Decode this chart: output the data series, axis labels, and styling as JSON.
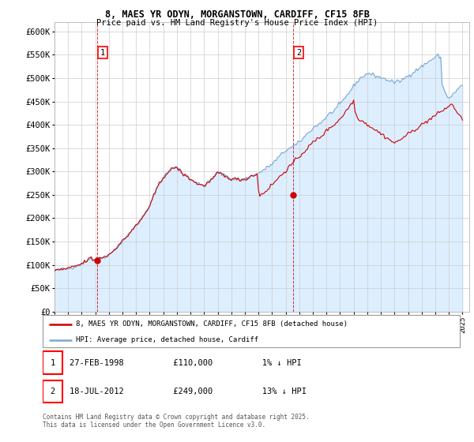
{
  "title_line1": "8, MAES YR ODYN, MORGANSTOWN, CARDIFF, CF15 8FB",
  "title_line2": "Price paid vs. HM Land Registry's House Price Index (HPI)",
  "xlim_start": 1995.0,
  "xlim_end": 2025.5,
  "ylim_min": 0,
  "ylim_max": 620000,
  "yticks": [
    0,
    50000,
    100000,
    150000,
    200000,
    250000,
    300000,
    350000,
    400000,
    450000,
    500000,
    550000,
    600000
  ],
  "ytick_labels": [
    "£0",
    "£50K",
    "£100K",
    "£150K",
    "£200K",
    "£250K",
    "£300K",
    "£350K",
    "£400K",
    "£450K",
    "£500K",
    "£550K",
    "£600K"
  ],
  "xticks": [
    1995,
    1996,
    1997,
    1998,
    1999,
    2000,
    2001,
    2002,
    2003,
    2004,
    2005,
    2006,
    2007,
    2008,
    2009,
    2010,
    2011,
    2012,
    2013,
    2014,
    2015,
    2016,
    2017,
    2018,
    2019,
    2020,
    2021,
    2022,
    2023,
    2024,
    2025
  ],
  "sale1_x": 1998.15,
  "sale1_y": 110000,
  "sale1_label": "1",
  "sale2_x": 2012.55,
  "sale2_y": 249000,
  "sale2_label": "2",
  "red_line_color": "#cc0000",
  "blue_line_color": "#7aa8d2",
  "fill_color": "#ddeeff",
  "background_color": "#ffffff",
  "grid_color": "#cccccc",
  "legend_label_red": "8, MAES YR ODYN, MORGANSTOWN, CARDIFF, CF15 8FB (detached house)",
  "legend_label_blue": "HPI: Average price, detached house, Cardiff",
  "copyright_text": "Contains HM Land Registry data © Crown copyright and database right 2025.\nThis data is licensed under the Open Government Licence v3.0.",
  "hpi_base_values": [
    88000,
    88500,
    89000,
    89200,
    89500,
    90000,
    90500,
    91000,
    91500,
    92000,
    92500,
    93000,
    94000,
    95000,
    96000,
    97000,
    98000,
    99000,
    100000,
    101000,
    102000,
    104000,
    106000,
    108000,
    110000,
    112000,
    114000,
    116000,
    109000,
    111000,
    112000,
    112500,
    113000,
    114000,
    115000,
    116000,
    117000,
    118000,
    119000,
    120000,
    122000,
    124000,
    127000,
    130000,
    133000,
    136000,
    139000,
    142000,
    145000,
    148000,
    151000,
    154000,
    157000,
    160000,
    163000,
    167000,
    171000,
    175000,
    178000,
    181000,
    184000,
    187000,
    191000,
    195000,
    199000,
    203000,
    207000,
    212000,
    217000,
    221000,
    225000,
    232000,
    240000,
    248000,
    256000,
    262000,
    268000,
    273000,
    278000,
    283000,
    288000,
    291000,
    294000,
    297000,
    300000,
    302000,
    304000,
    306000,
    308000,
    310000,
    308000,
    305000,
    302000,
    299000,
    296000,
    294000,
    292000,
    290000,
    288000,
    286000,
    284000,
    282000,
    280000,
    278000,
    276000,
    274000,
    273000,
    272000,
    271000,
    270000,
    271000,
    272000,
    274000,
    276000,
    278000,
    281000,
    284000,
    287000,
    290000,
    293000,
    296000,
    297000,
    296000,
    294000,
    292000,
    290000,
    289000,
    288000,
    287000,
    286000,
    285000,
    285000,
    284000,
    284000,
    283000,
    283000,
    283000,
    283000,
    283000,
    283000,
    284000,
    285000,
    286000,
    288000,
    289000,
    291000,
    292000,
    293000,
    294000,
    295000,
    296000,
    298000,
    300000,
    302000,
    304000,
    306000,
    308000,
    310000,
    312000,
    314000,
    316000,
    319000,
    322000,
    325000,
    328000,
    331000,
    334000,
    337000,
    340000,
    343000,
    345000,
    347000,
    349000,
    350000,
    351000,
    353000,
    354000,
    356000,
    358000,
    360000,
    363000,
    366000,
    369000,
    372000,
    375000,
    378000,
    381000,
    384000,
    387000,
    390000,
    393000,
    395000,
    397000,
    399000,
    401000,
    403000,
    405000,
    408000,
    411000,
    414000,
    417000,
    420000,
    423000,
    425000,
    427000,
    429000,
    432000,
    435000,
    438000,
    441000,
    444000,
    447000,
    451000,
    455000,
    459000,
    463000,
    467000,
    471000,
    475000,
    479000,
    483000,
    487000,
    491000,
    494000,
    497000,
    500000,
    502000,
    504000,
    506000,
    508000,
    510000,
    510000,
    509000,
    508000,
    507000,
    506000,
    505000,
    504000,
    503000,
    502000,
    501000,
    500000,
    499000,
    498000,
    497000,
    496000,
    495000,
    494000,
    493000,
    492000,
    491000,
    491000,
    492000,
    493000,
    494000,
    495000,
    497000,
    499000,
    501000,
    503000,
    505000,
    507000,
    509000,
    511000,
    513000,
    515000,
    517000,
    519000,
    521000,
    523000,
    525000,
    527000,
    529000,
    531000,
    533000,
    535000,
    537000,
    539000,
    541000,
    543000,
    545000,
    547000,
    549000,
    545000,
    541000,
    490000,
    480000,
    470000,
    465000,
    460000,
    458000,
    460000,
    462000,
    465000,
    468000,
    471000,
    474000,
    477000,
    480000,
    483000,
    486000
  ],
  "red_base_values": [
    88000,
    88500,
    89000,
    89200,
    89500,
    90000,
    90500,
    91000,
    91500,
    92000,
    92500,
    93000,
    94000,
    95000,
    96000,
    97000,
    98000,
    99000,
    100000,
    101000,
    102000,
    104000,
    106000,
    108000,
    110000,
    112000,
    114000,
    116000,
    109000,
    111000,
    112000,
    112500,
    113000,
    114000,
    115000,
    116000,
    117000,
    118000,
    119000,
    120000,
    122000,
    124000,
    127000,
    130000,
    133000,
    136000,
    139000,
    142000,
    145000,
    148000,
    151000,
    154000,
    157000,
    160000,
    163000,
    167000,
    171000,
    175000,
    178000,
    181000,
    184000,
    187000,
    191000,
    195000,
    199000,
    203000,
    207000,
    212000,
    217000,
    221000,
    225000,
    232000,
    240000,
    248000,
    256000,
    262000,
    268000,
    273000,
    278000,
    283000,
    288000,
    291000,
    294000,
    297000,
    300000,
    302000,
    304000,
    306000,
    308000,
    310000,
    308000,
    305000,
    302000,
    299000,
    296000,
    294000,
    292000,
    290000,
    288000,
    286000,
    284000,
    282000,
    280000,
    278000,
    276000,
    274000,
    273000,
    272000,
    271000,
    270000,
    271000,
    272000,
    274000,
    276000,
    278000,
    281000,
    284000,
    287000,
    290000,
    293000,
    296000,
    297000,
    296000,
    294000,
    292000,
    290000,
    289000,
    288000,
    287000,
    286000,
    285000,
    285000,
    284000,
    284000,
    283000,
    283000,
    283000,
    283000,
    283000,
    283000,
    284000,
    285000,
    286000,
    288000,
    289000,
    291000,
    292000,
    293000,
    294000,
    295000,
    258000,
    249000,
    251000,
    253000,
    255000,
    257000,
    260000,
    263000,
    266000,
    269000,
    272000,
    275000,
    278000,
    281000,
    284000,
    287000,
    290000,
    293000,
    296000,
    299000,
    302000,
    305000,
    308000,
    311000,
    314000,
    317000,
    320000,
    323000,
    326000,
    329000,
    332000,
    335000,
    338000,
    341000,
    344000,
    347000,
    350000,
    353000,
    356000,
    359000,
    362000,
    365000,
    367000,
    369000,
    371000,
    373000,
    375000,
    378000,
    381000,
    384000,
    387000,
    390000,
    393000,
    395000,
    397000,
    399000,
    401000,
    404000,
    407000,
    410000,
    413000,
    416000,
    420000,
    424000,
    428000,
    432000,
    436000,
    440000,
    444000,
    448000,
    452000,
    430000,
    420000,
    415000,
    413000,
    411000,
    409000,
    407000,
    405000,
    403000,
    401000,
    399000,
    397000,
    395000,
    393000,
    391000,
    389000,
    387000,
    385000,
    383000,
    381000,
    379000,
    377000,
    375000,
    373000,
    371000,
    369000,
    367000,
    365000,
    363000,
    361000,
    362000,
    364000,
    366000,
    368000,
    370000,
    372000,
    374000,
    376000,
    378000,
    380000,
    382000,
    384000,
    386000,
    388000,
    390000,
    392000,
    394000,
    396000,
    398000,
    400000,
    402000,
    404000,
    406000,
    408000,
    410000,
    412000,
    414000,
    416000,
    418000,
    420000,
    422000,
    424000,
    426000,
    428000,
    430000,
    432000,
    434000,
    436000,
    438000,
    440000,
    442000,
    444000,
    440000,
    436000,
    432000,
    428000,
    424000,
    420000,
    416000,
    412000
  ]
}
